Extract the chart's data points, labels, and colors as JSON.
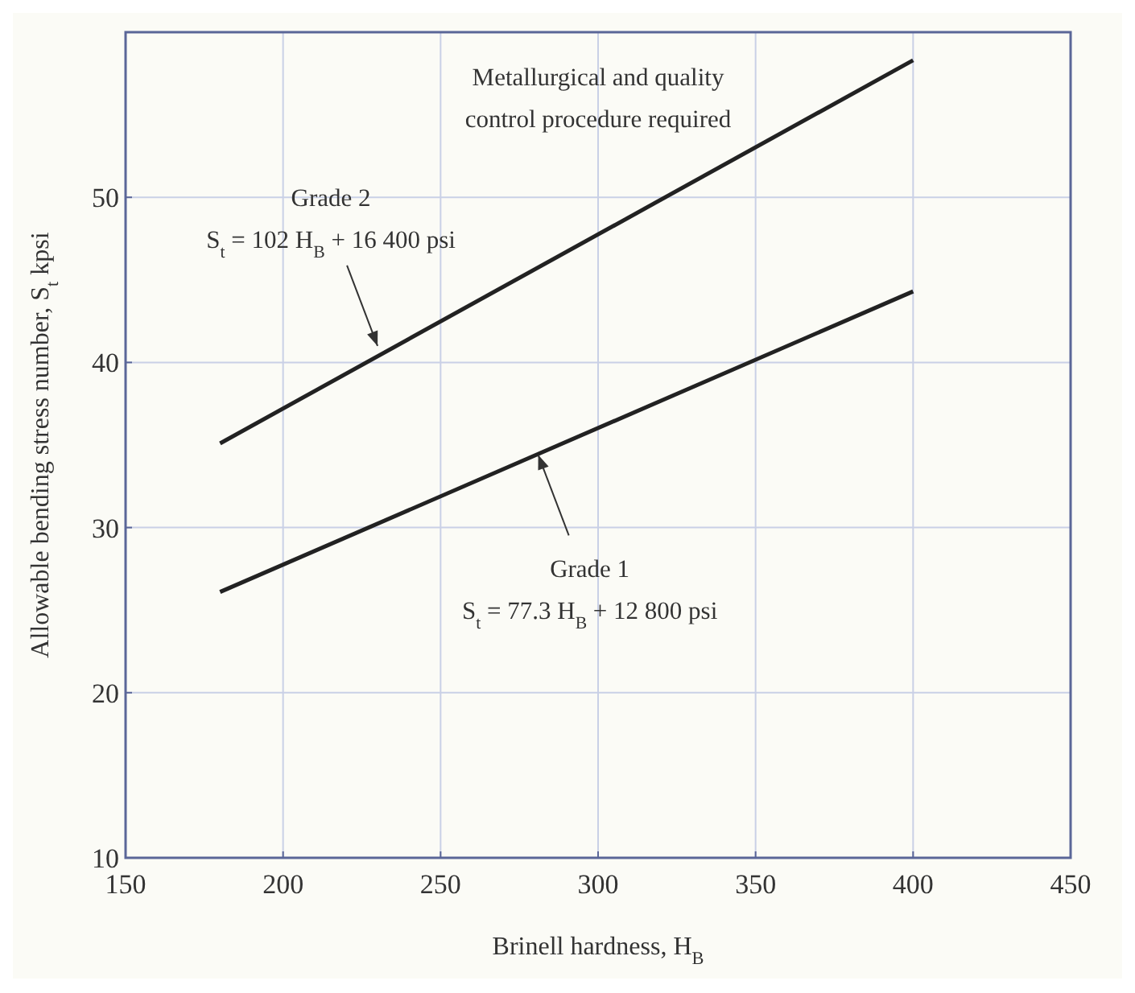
{
  "chart_data": {
    "type": "line",
    "xlabel": "Brinell hardness, H$_{B}$",
    "ylabel": "Allowable bending stress number, S$_{t}$ kpsi",
    "series": [
      {
        "color": "#222222",
        "values": [
          35.1,
          58.3
        ]
      },
      {
        "color": "#222222",
        "values": [
          26.1,
          44.3
        ]
      }
    ],
    "x": [
      180,
      400
    ],
    "xlim": [
      150,
      450
    ],
    "ylim": [
      10,
      60
    ],
    "xticks": [
      150,
      200,
      250,
      300,
      350,
      400,
      450
    ],
    "yticks": [
      10,
      20,
      30,
      40,
      50
    ],
    "grid": true,
    "annotations": [
      "Metallurgical and quality control procedure required",
      "Grade 2",
      {
        "text": "S$_{t}$ = 102 H$_{B}$ + 16 400 psi",
        "x": 230,
        "y": 41.0
      },
      {
        "text": "Grade 1",
        "x": 281,
        "y": 34.4
      },
      "S$_{t}$ = 77.3 H$_{B}$ + 12 800 psi"
    ]
  }
}
